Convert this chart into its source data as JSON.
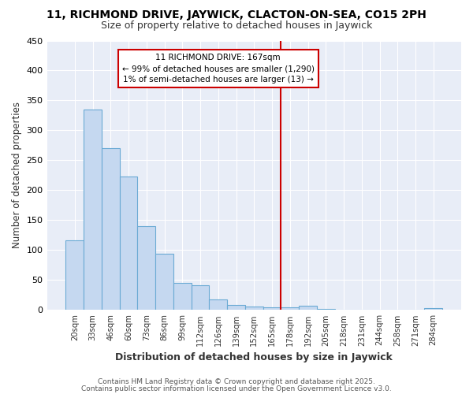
{
  "title": "11, RICHMOND DRIVE, JAYWICK, CLACTON-ON-SEA, CO15 2PH",
  "subtitle": "Size of property relative to detached houses in Jaywick",
  "xlabel": "Distribution of detached houses by size in Jaywick",
  "ylabel": "Number of detached properties",
  "categories": [
    "20sqm",
    "33sqm",
    "46sqm",
    "60sqm",
    "73sqm",
    "86sqm",
    "99sqm",
    "112sqm",
    "126sqm",
    "139sqm",
    "152sqm",
    "165sqm",
    "178sqm",
    "192sqm",
    "205sqm",
    "218sqm",
    "231sqm",
    "244sqm",
    "258sqm",
    "271sqm",
    "284sqm"
  ],
  "values": [
    117,
    335,
    270,
    223,
    140,
    94,
    45,
    41,
    18,
    9,
    6,
    5,
    5,
    7,
    2,
    1,
    0,
    0,
    0,
    0,
    3
  ],
  "bar_color": "#c5d8f0",
  "bar_edge_color": "#6aaad4",
  "highlight_index": 11,
  "vline_color": "#cc0000",
  "annotation_text": "11 RICHMOND DRIVE: 167sqm\n← 99% of detached houses are smaller (1,290)\n1% of semi-detached houses are larger (13) →",
  "annotation_box_color": "#ffffff",
  "annotation_box_edge_color": "#cc0000",
  "ylim": [
    0,
    450
  ],
  "yticks": [
    0,
    50,
    100,
    150,
    200,
    250,
    300,
    350,
    400,
    450
  ],
  "background_color": "#ffffff",
  "plot_bg_color": "#e8edf7",
  "grid_color": "#ffffff",
  "footer_line1": "Contains HM Land Registry data © Crown copyright and database right 2025.",
  "footer_line2": "Contains public sector information licensed under the Open Government Licence v3.0."
}
